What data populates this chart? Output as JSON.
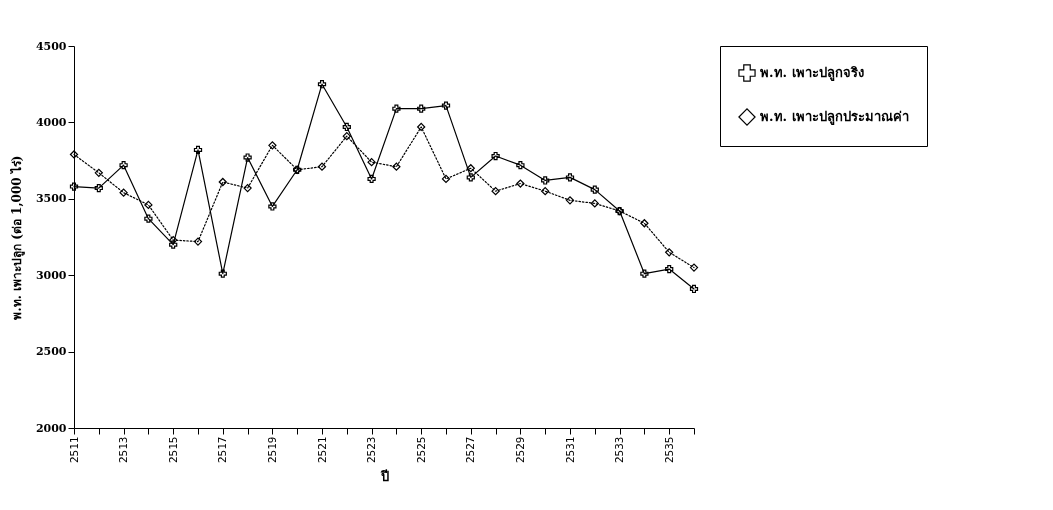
{
  "chart_data": {
    "type": "line",
    "xlabel": "ปี",
    "ylabel": "พ.ท. เพาะปลูก (ต่อ 1,000 ไร่)",
    "x": [
      2511,
      2512,
      2513,
      2514,
      2515,
      2516,
      2517,
      2518,
      2519,
      2520,
      2521,
      2522,
      2523,
      2524,
      2525,
      2526,
      2527,
      2528,
      2529,
      2530,
      2531,
      2532,
      2533,
      2534,
      2535,
      2536
    ],
    "series": [
      {
        "name": "พ.ท. เพาะปลูกจริง",
        "color": "#000000",
        "marker": "cross",
        "line_style": "solid",
        "values": [
          3580,
          3570,
          3720,
          3370,
          3200,
          3820,
          3010,
          3770,
          3450,
          3690,
          4250,
          3970,
          3630,
          4090,
          4090,
          4110,
          3640,
          3780,
          3720,
          3620,
          3640,
          3560,
          3420,
          3010,
          3040,
          2910
        ]
      },
      {
        "name": "พ.ท. เพาะปลูกประมาณค่า",
        "color": "#000000",
        "marker": "diamond",
        "line_style": "dotted",
        "values": [
          3790,
          3670,
          3540,
          3460,
          3230,
          3220,
          3610,
          3570,
          3850,
          3690,
          3710,
          3910,
          3740,
          3710,
          3970,
          3630,
          3700,
          3550,
          3600,
          3550,
          3490,
          3470,
          3420,
          3340,
          3150,
          3050
        ]
      }
    ],
    "xlim": [
      2511,
      2536
    ],
    "xticks": [
      2511,
      {
        "value": 2512,
        "label": null
      },
      2513,
      {
        "value": 2514,
        "label": null
      },
      2515,
      {
        "value": 2516,
        "label": null
      },
      2517,
      {
        "value": 2518,
        "label": null
      },
      2519,
      {
        "value": 2520,
        "label": null
      },
      2521,
      {
        "value": 2522,
        "label": null
      },
      2523,
      {
        "value": 2524,
        "label": null
      },
      2525,
      {
        "value": 2526,
        "label": null
      },
      2527,
      {
        "value": 2528,
        "label": null
      },
      2529,
      {
        "value": 2530,
        "label": null
      },
      2531,
      {
        "value": 2532,
        "label": null
      },
      2533,
      {
        "value": 2534,
        "label": null
      },
      2535,
      {
        "value": 2536,
        "label": null
      }
    ],
    "ylim": [
      2000,
      4500
    ],
    "yticks": [
      2000,
      2500,
      3000,
      3500,
      4000,
      4500
    ],
    "grid": false,
    "legend": "right"
  }
}
